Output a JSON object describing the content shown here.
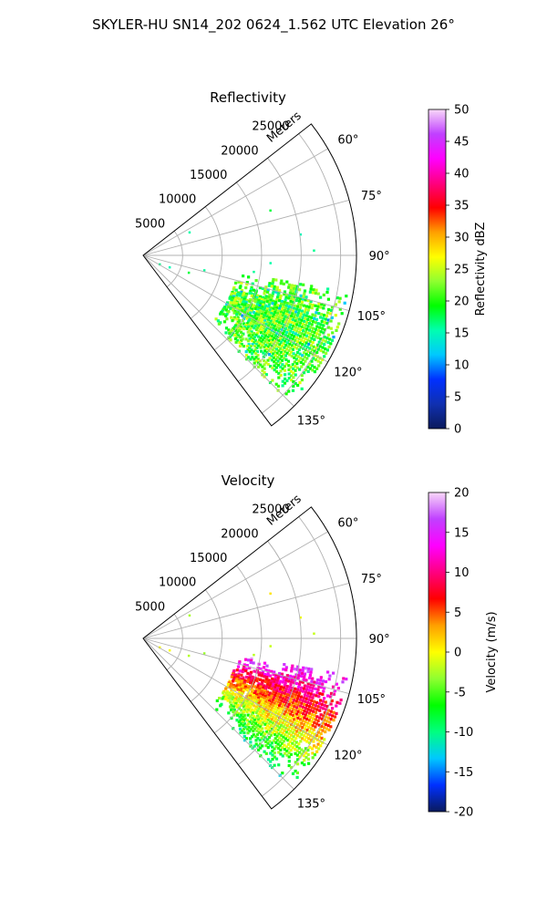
{
  "figure_title": "SKYLER-HU  SN14_202  0624_1.562 UTC Elevation 26°",
  "chart_data": [
    {
      "type": "polar-sector",
      "title": "Reflectivity",
      "range_axis_label": "Meters",
      "range_ticks": [
        5000,
        10000,
        15000,
        20000,
        25000
      ],
      "range_max": 27000,
      "azimuth_range_deg": [
        52,
        143
      ],
      "azimuth_ticks": [
        "60°",
        "75°",
        "90°",
        "105°",
        "120°",
        "135°"
      ],
      "colorbar": {
        "label": "Reflectivity dBZ",
        "range": [
          0,
          50
        ],
        "ticks": [
          "0",
          "5",
          "10",
          "15",
          "20",
          "25",
          "30",
          "35",
          "40",
          "45",
          "50"
        ],
        "stops": [
          "#0a1a5c",
          "#1030b0",
          "#0030ff",
          "#00c8ff",
          "#00ffb0",
          "#00ff00",
          "#90ff30",
          "#ffff00",
          "#ffa000",
          "#ff0000",
          "#ff0080",
          "#ff00ff",
          "#c040ff",
          "#f8d8f8"
        ]
      },
      "echo_region": {
        "azimuth_deg": [
          100,
          135
        ],
        "range_m": [
          12000,
          26000
        ],
        "dominant_value": "15–25 dBZ"
      }
    },
    {
      "type": "polar-sector",
      "title": "Velocity",
      "range_axis_label": "Meters",
      "range_ticks": [
        5000,
        10000,
        15000,
        20000,
        25000
      ],
      "range_max": 27000,
      "azimuth_range_deg": [
        52,
        143
      ],
      "azimuth_ticks": [
        "60°",
        "75°",
        "90°",
        "105°",
        "120°",
        "135°"
      ],
      "colorbar": {
        "label": "Velocity (m/s)",
        "range": [
          -20,
          20
        ],
        "ticks": [
          "-20",
          "-15",
          "-10",
          "-5",
          "0",
          "5",
          "10",
          "15",
          "20"
        ],
        "stops": [
          "#0a1a5c",
          "#0030ff",
          "#00c8ff",
          "#00ff80",
          "#00ff00",
          "#90ff30",
          "#ffff00",
          "#ffa000",
          "#ff0000",
          "#ff0080",
          "#ff00ff",
          "#c040ff",
          "#f8d8f8"
        ]
      },
      "echo_region": {
        "azimuth_deg": [
          100,
          135
        ],
        "range_m": [
          12000,
          26000
        ],
        "dominant_value": "-5 to 15 m/s"
      }
    }
  ]
}
